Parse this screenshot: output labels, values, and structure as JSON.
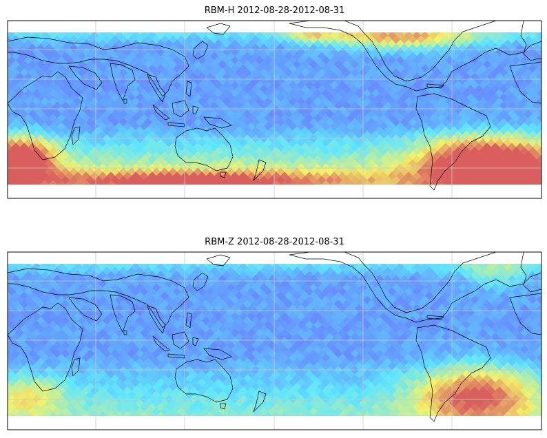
{
  "panels": [
    {
      "title": "RBM-H 2012-08-28-2012-08-31"
    },
    {
      "title": "RBM-Z 2012-08-28-2012-08-31"
    }
  ],
  "colors": {
    "low": "#6a6aff",
    "mid": "#5fe6ff",
    "midhigh": "#f3f36b",
    "high": "#d95f5f",
    "coast": "#000000",
    "grid": "#c8c8c8"
  }
}
